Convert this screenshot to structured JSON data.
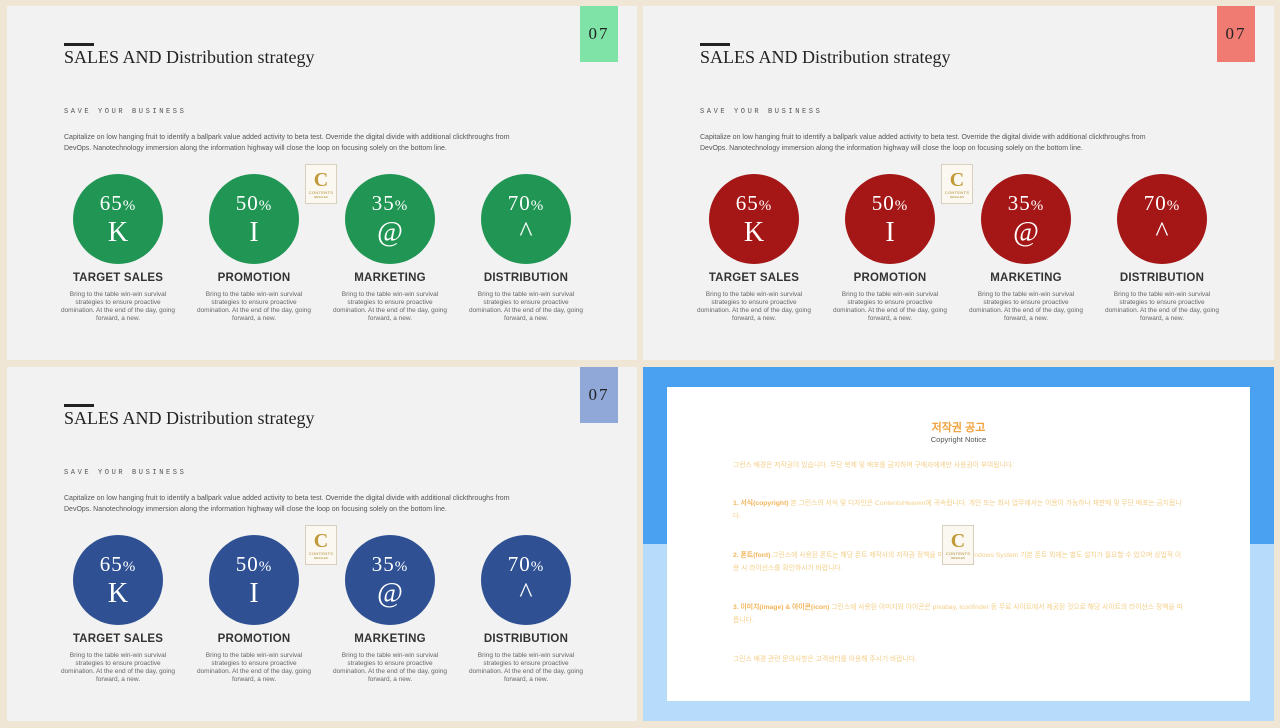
{
  "slides": [
    {
      "title": "SALES AND Distribution strategy",
      "page_number": "07",
      "page_color": "#7fe3a8",
      "circle_color": "#219654",
      "subtitle": "SAVE YOUR BUSINESS",
      "paragraph": "Capitalize on low hanging fruit to identify a ballpark value added activity to beta test. Override the digital divide with additional clickthroughs from DevOps. Nanotechnology immersion along the information highway will close the loop on focusing solely on the bottom line."
    },
    {
      "title": "SALES AND Distribution strategy",
      "page_number": "07",
      "page_color": "#f07b72",
      "circle_color": "#a51616",
      "subtitle": "SAVE YOUR BUSINESS",
      "paragraph": "Capitalize on low hanging fruit to identify a ballpark value added activity to beta test. Override the digital divide with additional clickthroughs from DevOps. Nanotechnology immersion along the information highway will close the loop on focusing solely on the bottom line."
    },
    {
      "title": "SALES AND Distribution strategy",
      "page_number": "07",
      "page_color": "#8fa8d8",
      "circle_color": "#2f5193",
      "subtitle": "SAVE YOUR BUSINESS",
      "paragraph": "Capitalize on low hanging fruit to identify a ballpark value added activity to beta test. Override the digital divide with additional clickthroughs from DevOps. Nanotechnology immersion along the information highway will close the loop on focusing solely on the bottom line."
    }
  ],
  "items": [
    {
      "pct": "65",
      "unit": "%",
      "symbol": "K",
      "label": "TARGET SALES",
      "desc": "Bring to the table win-win survival strategies to ensure proactive domination. At the end of the day, going forward, a new."
    },
    {
      "pct": "50",
      "unit": "%",
      "symbol": "I",
      "label": "PROMOTION",
      "desc": "Bring to the table win-win survival strategies to ensure proactive domination. At the end of the day, going forward, a new."
    },
    {
      "pct": "35",
      "unit": "%",
      "symbol": "@",
      "label": "MARKETING",
      "desc": "Bring to the table win-win survival strategies to ensure proactive domination. At the end of the day, going forward, a new."
    },
    {
      "pct": "70",
      "unit": "%",
      "symbol": "^",
      "label": "DISTRIBUTION",
      "desc": "Bring to the table win-win survival strategies to ensure proactive domination. At the end of the day, going forward, a new."
    }
  ],
  "logo": {
    "letter": "C",
    "line1": "CONTENTS",
    "line2": "RESALES"
  },
  "notice": {
    "title": "저작권 공고",
    "subtitle": "Copyright Notice",
    "p1": "그런스 배경은 저작권이 있습니다. 무단 복제 및 배포를 금지하며 구매자에게만 사용권이 부여됩니다.",
    "p2_head": "1. 서식(copyright)",
    "p2": " 본 그린스의 서식 및 디자인은 ContentsHeaven에 귀속됩니다. 개인 또는 회사 업무에서는 이용이 가능하나 재판매 및 무단 배포는 금지됩니다.",
    "p3_head": "2. 폰트(font)",
    "p3": " 그린스에 사용된 폰트는 해당 폰트 제작사의 저작권 정책을 따릅니다. Windows System 기본 폰트 외에는 별도 설치가 필요할 수 있으며 상업적 이용 시 라이선스를 확인하시기 바랍니다.",
    "p4_head": "3. 이미지(image) & 아이콘(icon)",
    "p4": " 그린스에 사용된 이미지와 아이콘은 pixabay, iconfinder 등 무료 사이트에서 제공된 것으로 해당 사이트의 라이선스 정책을 따릅니다.",
    "p5": "그린스 배경 관련 문의사항은 고객센터를 이용해 주시기 바랍니다."
  }
}
